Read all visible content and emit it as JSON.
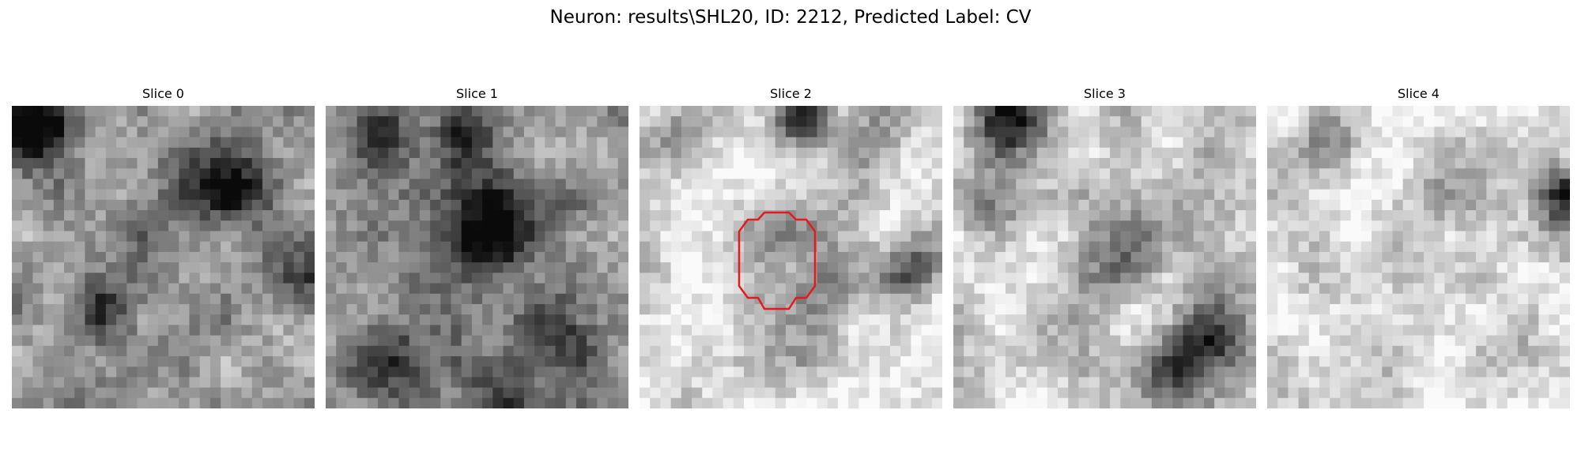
{
  "figure": {
    "title": "Neuron: results\\SHL20, ID: 2212, Predicted Label: CV"
  },
  "colors": {
    "background": "#ffffff",
    "roi_outline": "#e41a1c"
  },
  "image": {
    "colormap": "grayscale",
    "grid_resolution": 29
  },
  "panels": [
    {
      "title": "Slice 0",
      "has_roi": false
    },
    {
      "title": "Slice 1",
      "has_roi": false
    },
    {
      "title": "Slice 2",
      "has_roi": true
    },
    {
      "title": "Slice 3",
      "has_roi": false
    },
    {
      "title": "Slice 4",
      "has_roi": false
    }
  ]
}
